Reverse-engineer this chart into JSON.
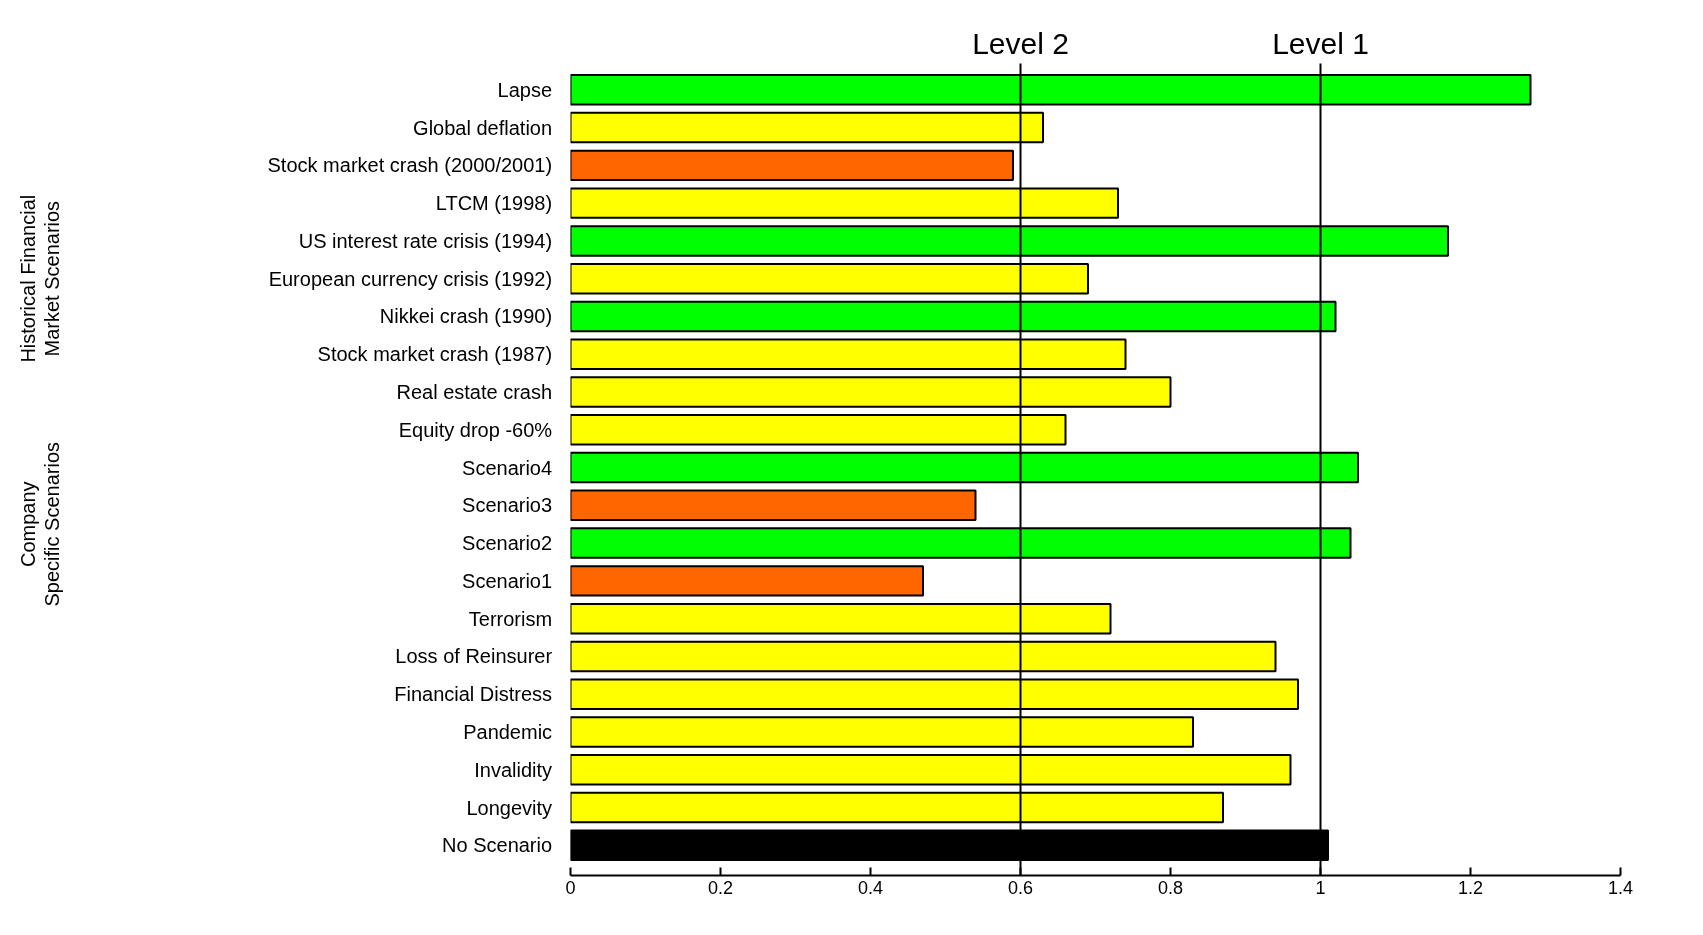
{
  "chart_data": {
    "type": "bar",
    "orientation": "horizontal",
    "categories": [
      "Lapse",
      "Global deflation",
      "Stock market crash (2000/2001)",
      "LTCM (1998)",
      "US interest rate crisis (1994)",
      "European currency crisis (1992)",
      "Nikkei crash (1990)",
      "Stock market crash (1987)",
      "Real estate crash",
      "Equity drop -60%",
      "Scenario4",
      "Scenario3",
      "Scenario2",
      "Scenario1",
      "Terrorism",
      "Loss of Reinsurer",
      "Financial Distress",
      "Pandemic",
      "Invalidity",
      "Longevity",
      "No Scenario"
    ],
    "values": [
      1.28,
      0.63,
      0.59,
      0.73,
      1.17,
      0.69,
      1.02,
      0.74,
      0.8,
      0.66,
      1.05,
      0.54,
      1.04,
      0.47,
      0.72,
      0.94,
      0.97,
      0.83,
      0.96,
      0.87,
      1.01
    ],
    "colors": [
      "#00ff00",
      "#ffff00",
      "#ff6600",
      "#ffff00",
      "#00ff00",
      "#ffff00",
      "#00ff00",
      "#ffff00",
      "#ffff00",
      "#ffff00",
      "#00ff00",
      "#ff6600",
      "#00ff00",
      "#ff6600",
      "#ffff00",
      "#ffff00",
      "#ffff00",
      "#ffff00",
      "#ffff00",
      "#ffff00",
      "#000000"
    ],
    "xlim": [
      0,
      1.4
    ],
    "xticks": [
      0,
      0.2,
      0.4,
      0.6,
      0.8,
      1,
      1.2,
      1.4
    ],
    "ref_lines": [
      {
        "axis": "x",
        "value": 0.6,
        "label": "Level 2",
        "color": "#000000"
      },
      {
        "axis": "x",
        "value": 1.0,
        "label": "Level 1",
        "color": "#000000"
      }
    ],
    "annotations": [
      "Historical Financial\nMarket Scenarios",
      "Company\nSpecific Scenarios"
    ],
    "grid": false
  }
}
